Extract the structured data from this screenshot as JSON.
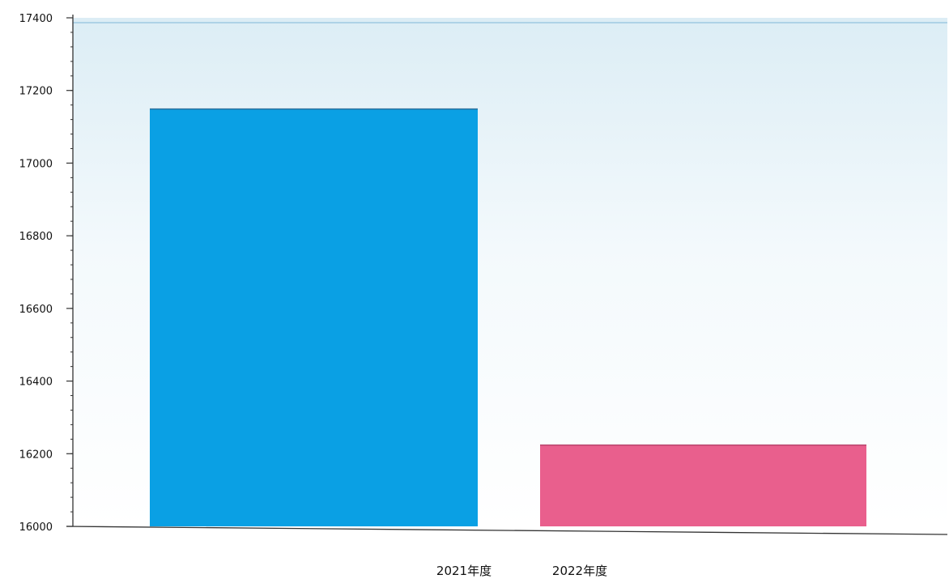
{
  "chart_data": {
    "type": "bar",
    "categories": [
      "2021年度",
      "2022年度"
    ],
    "values": [
      17150,
      16225
    ],
    "colors": [
      "#0aa0e4",
      "#e95f8d"
    ],
    "ylim": [
      16000,
      17400
    ],
    "yticks": [
      16000,
      16200,
      16400,
      16600,
      16800,
      17000,
      17200,
      17400
    ],
    "grid": false,
    "plot_background": "#eef6fa"
  }
}
